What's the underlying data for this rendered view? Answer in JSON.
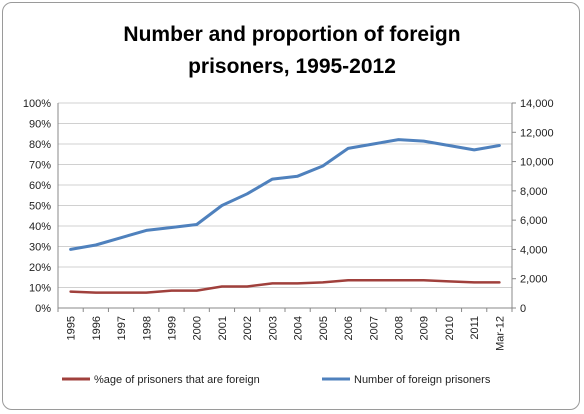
{
  "chart_data": {
    "type": "line",
    "title_line1": "Number and proportion of foreign",
    "title_line2": "prisoners, 1995-2012",
    "categories": [
      "1995",
      "1996",
      "1997",
      "1998",
      "1999",
      "2000",
      "2001",
      "2002",
      "2003",
      "2004",
      "2005",
      "2006",
      "2007",
      "2008",
      "2009",
      "2010",
      "2011",
      "Mar-12"
    ],
    "y_left": {
      "ticks": [
        "0%",
        "10%",
        "20%",
        "30%",
        "40%",
        "50%",
        "60%",
        "70%",
        "80%",
        "90%",
        "100%"
      ],
      "min": 0,
      "max": 100
    },
    "y_right": {
      "ticks": [
        "0",
        "2,000",
        "4,000",
        "6,000",
        "8,000",
        "10,000",
        "12,000",
        "14,000"
      ],
      "min": 0,
      "max": 14000
    },
    "grid": "horizontal",
    "legend_position": "bottom",
    "series": [
      {
        "name": "%age of prisoners that are foreign",
        "axis": "left",
        "color": "#a0403c",
        "values": [
          8,
          7.5,
          7.5,
          7.5,
          8.5,
          8.5,
          10.5,
          10.5,
          12,
          12,
          12.5,
          13.5,
          13.5,
          13.5,
          13.5,
          13,
          12.5,
          12.5
        ]
      },
      {
        "name": "Number of foreign prisoners",
        "axis": "right",
        "color": "#4f81bd",
        "values": [
          4000,
          4300,
          4800,
          5300,
          5500,
          5700,
          7000,
          7800,
          8800,
          9000,
          9700,
          10900,
          11200,
          11500,
          11400,
          11100,
          10800,
          11100
        ]
      }
    ]
  }
}
